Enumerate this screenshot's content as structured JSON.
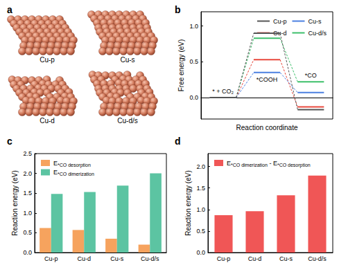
{
  "panel_a": {
    "title": "a",
    "labels": [
      "Cu-p",
      "Cu-s",
      "Cu-d",
      "Cu-d/s"
    ]
  },
  "chart_data": [
    {
      "title": "b",
      "type": "line",
      "categories": [
        "* + CO₂",
        "*COOH",
        "*CO"
      ],
      "series": [
        {
          "name": "Cu-p",
          "color": "#555555",
          "values": [
            0,
            0.9,
            -0.17
          ]
        },
        {
          "name": "Cu-s",
          "color": "#4a7fe0",
          "values": [
            0,
            0.35,
            0.07
          ]
        },
        {
          "name": "Cu-d",
          "color": "#e8483c",
          "values": [
            0,
            0.53,
            -0.13
          ]
        },
        {
          "name": "Cu-d/s",
          "color": "#3cbf6a",
          "values": [
            0,
            0.83,
            0.22
          ]
        }
      ],
      "xlabel": "Reaction coordinate",
      "ylabel": "Free energy (eV)",
      "ylim": [
        -0.3,
        1.2
      ],
      "yticks": [
        {
          "value": 0,
          "label": "0.0"
        },
        0.5,
        {
          "value": 1,
          "label": "1.0"
        }
      ],
      "legend": "upper right",
      "tick_labels": "y",
      "grid": false
    },
    {
      "title": "c",
      "type": "bar",
      "categories": [
        "Cu-p",
        "Cu-d",
        "Cu-s",
        "Cu-d/s"
      ],
      "series": [
        {
          "name": "E *CO desorption",
          "color": "#f6a35e",
          "values": [
            0.62,
            0.57,
            0.35,
            0.2
          ]
        },
        {
          "name": "E *CO dimerization",
          "color": "#5cc4a2",
          "values": [
            1.48,
            1.53,
            1.69,
            2.0
          ]
        }
      ],
      "ylabel": "Reaction energy (eV)",
      "ylim": [
        0,
        2.5
      ],
      "yticks": [
        {
          "value": 0,
          "label": "0.0"
        },
        0.5,
        {
          "value": 1,
          "label": "1.0"
        },
        1.5,
        {
          "value": 2,
          "label": "2.0"
        },
        2.5
      ],
      "legend": "upper left",
      "grid": false
    },
    {
      "title": "d",
      "type": "bar",
      "categories": [
        "Cu-p",
        "Cu-d",
        "Cu-s",
        "Cu-d/s"
      ],
      "series": [
        {
          "name": "E *CO dimerization - E *CO desorption",
          "color": "#f05656",
          "values": [
            0.87,
            0.96,
            1.33,
            1.79
          ]
        }
      ],
      "ylabel": "Reaction energy (eV)",
      "ylim": [
        0,
        2.3
      ],
      "yticks": [
        {
          "value": 0,
          "label": "0.0"
        },
        0.5,
        {
          "value": 1,
          "label": "1.0"
        },
        1.5,
        {
          "value": 2,
          "label": "2.0"
        }
      ],
      "legend": "upper left",
      "grid": false
    }
  ]
}
